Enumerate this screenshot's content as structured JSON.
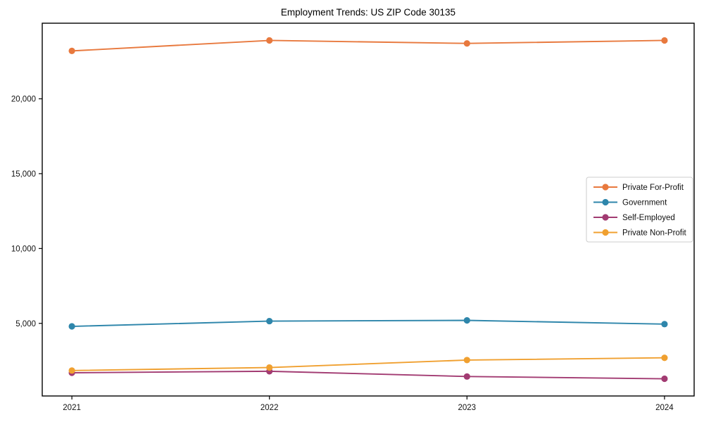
{
  "chart_data": {
    "type": "line",
    "title": "Employment Trends: US ZIP Code 30135",
    "xlabel": "",
    "ylabel": "",
    "x_categories": [
      "2021",
      "2022",
      "2023",
      "2024"
    ],
    "series": [
      {
        "name": "Private For-Profit",
        "color": "#E8793E",
        "values": [
          23200,
          23900,
          23700,
          23900
        ]
      },
      {
        "name": "Government",
        "color": "#2E86AB",
        "values": [
          4800,
          5150,
          5200,
          4950
        ]
      },
      {
        "name": "Self-Employed",
        "color": "#A23B72",
        "values": [
          1700,
          1800,
          1450,
          1300
        ]
      },
      {
        "name": "Private Non-Profit",
        "color": "#F0A030",
        "values": [
          1850,
          2050,
          2550,
          2700
        ]
      }
    ],
    "yticks": [
      {
        "value": 5000,
        "label": "5,000"
      },
      {
        "value": 10000,
        "label": "10,000"
      },
      {
        "value": 15000,
        "label": "15,000"
      },
      {
        "value": 20000,
        "label": "20,000"
      }
    ],
    "ylim": [
      150,
      25050
    ],
    "grid": false,
    "legend_position": "right",
    "frame_color": "#000000",
    "background_color": "#ffffff",
    "legend_border_color": "#cccccc"
  }
}
